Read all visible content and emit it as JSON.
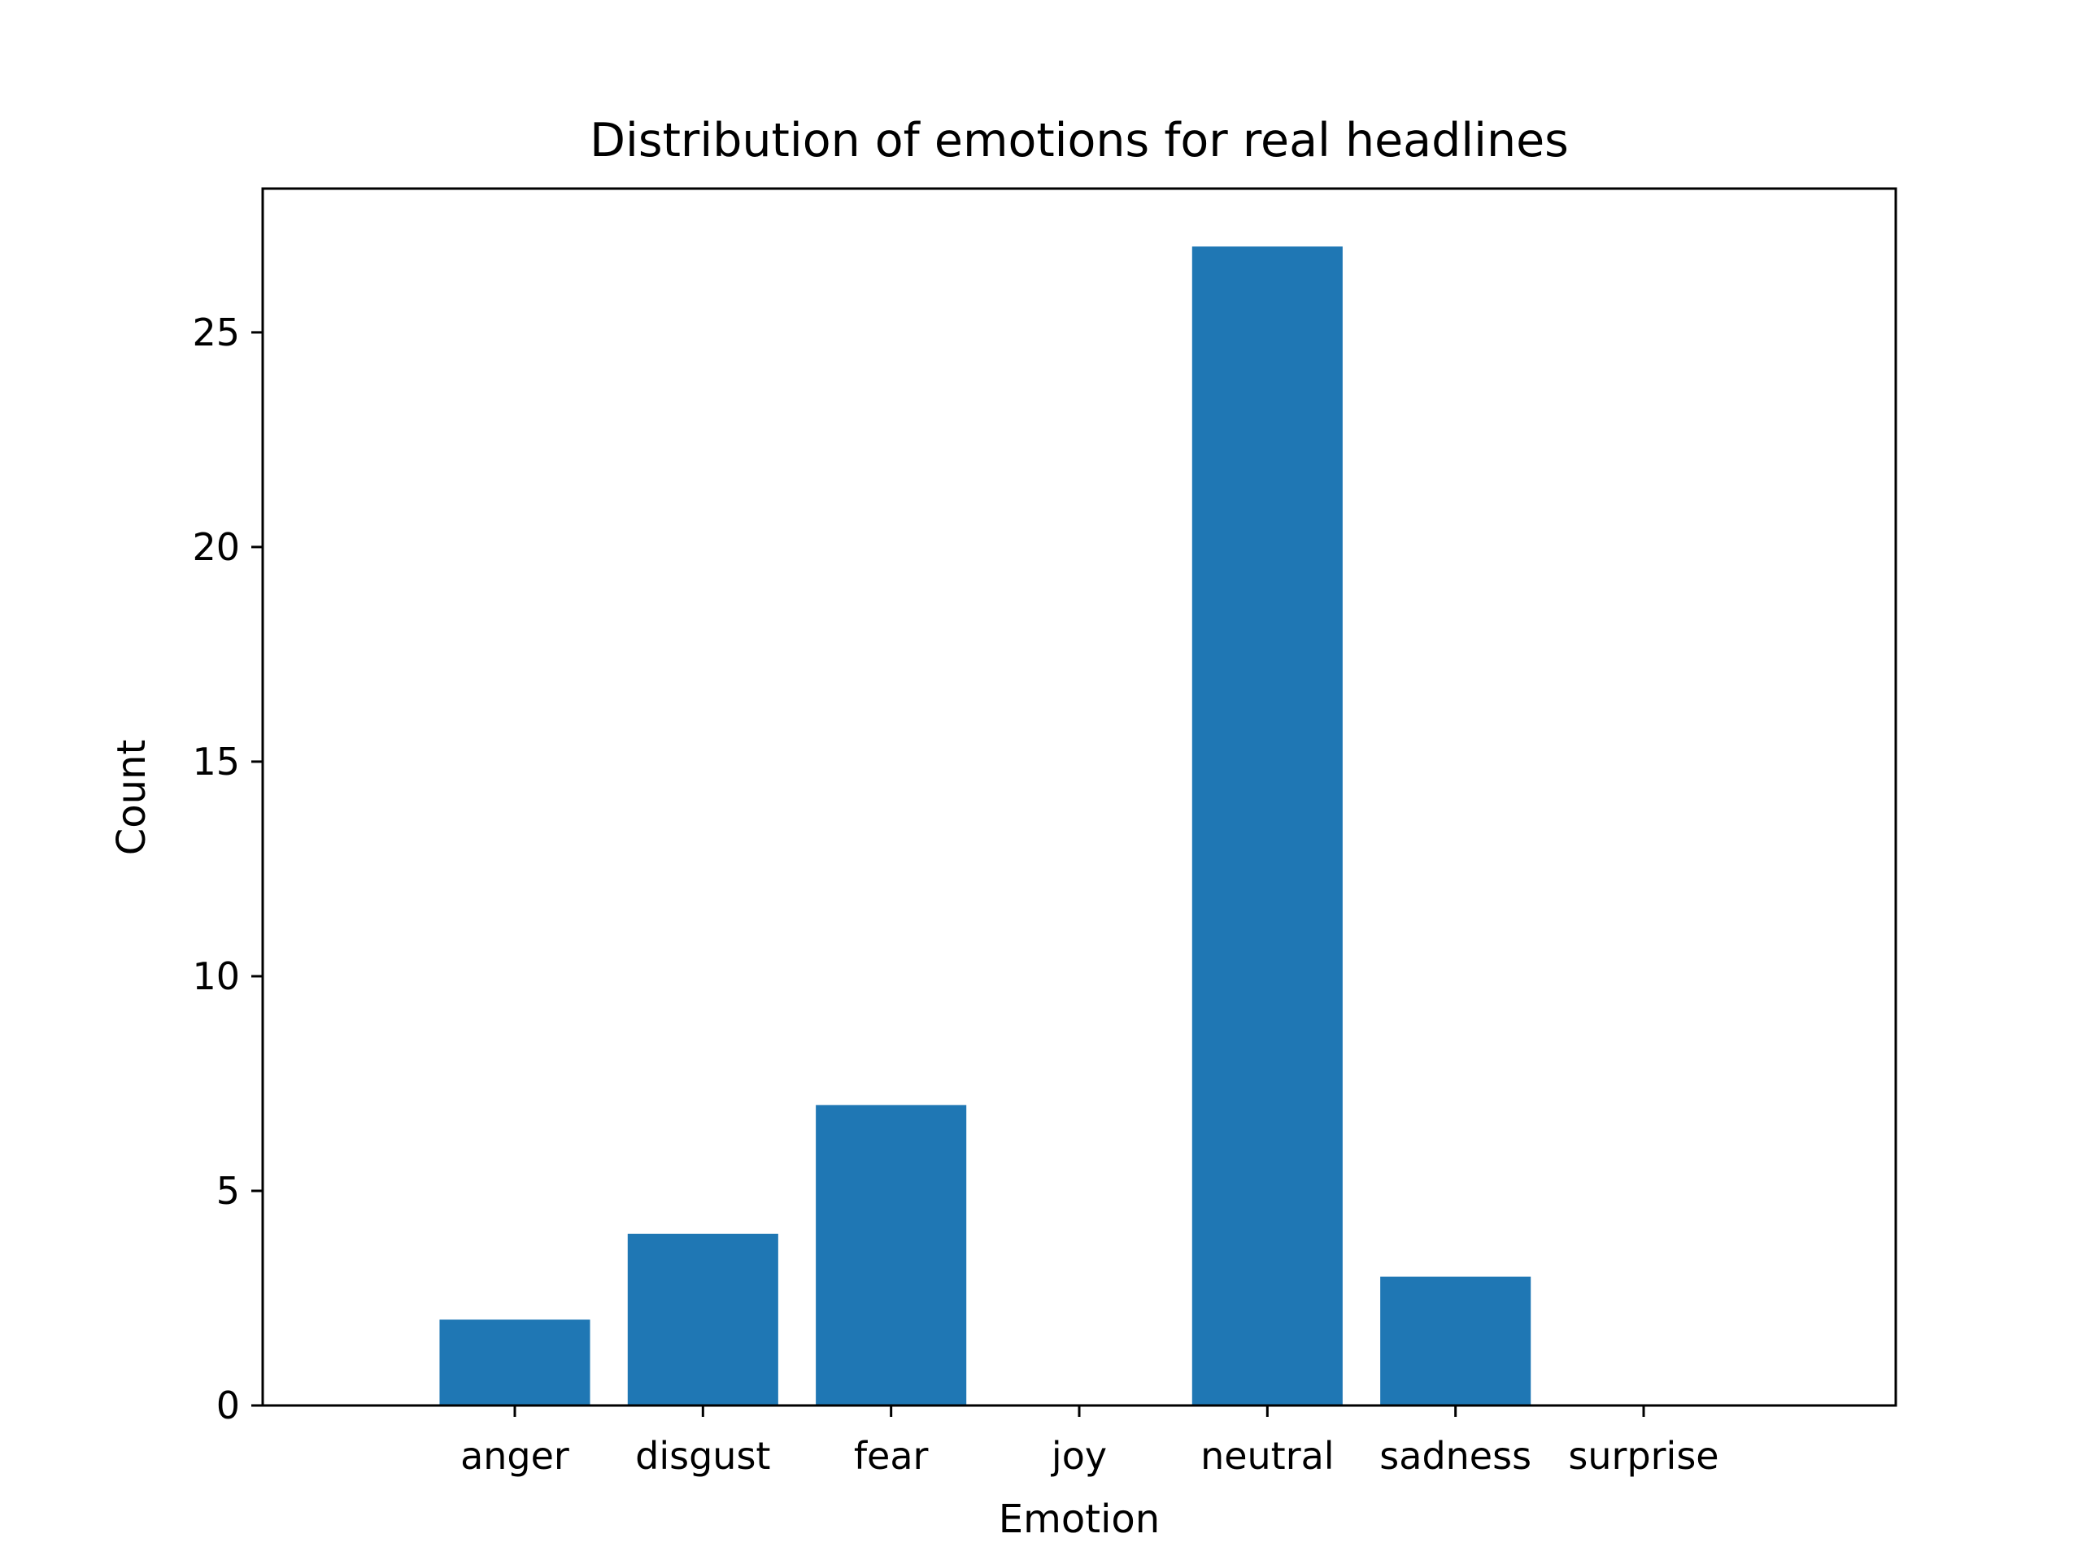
{
  "chart_data": {
    "type": "bar",
    "title": "Distribution of emotions for real headlines",
    "xlabel": "Emotion",
    "ylabel": "Count",
    "categories": [
      "anger",
      "disgust",
      "fear",
      "joy",
      "neutral",
      "sadness",
      "surprise"
    ],
    "values": [
      2,
      4,
      7,
      0,
      27,
      3,
      0
    ],
    "ylim": [
      0,
      28.35
    ],
    "yticks": [
      0,
      5,
      10,
      15,
      20,
      25
    ],
    "grid": false,
    "bar_color": "#1f77b4"
  }
}
